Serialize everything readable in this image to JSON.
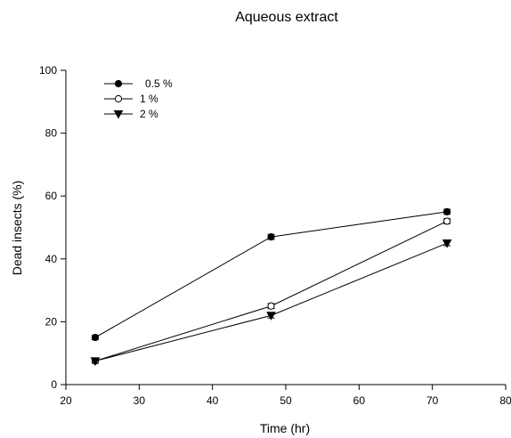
{
  "chart_data": {
    "type": "line",
    "title": "Aqueous extract",
    "xlabel": "Time (hr)",
    "ylabel": "Dead insects (%)",
    "xlim": [
      20,
      80
    ],
    "ylim": [
      0,
      100
    ],
    "xticks": [
      20,
      30,
      40,
      50,
      60,
      70,
      80
    ],
    "yticks": [
      0,
      20,
      40,
      60,
      80,
      100
    ],
    "grid": false,
    "legend_position": "top-left",
    "x": [
      24,
      48,
      72
    ],
    "series": [
      {
        "name": "0.5 %",
        "marker": "filled-circle",
        "values": [
          15,
          47,
          55
        ],
        "errors": [
          0.7,
          0.8,
          0.8
        ]
      },
      {
        "name": "1 %",
        "marker": "open-circle",
        "values": [
          7.5,
          25,
          52
        ],
        "errors": [
          0.7,
          0.8,
          0.8
        ]
      },
      {
        "name": "2 %",
        "marker": "filled-triangle-down",
        "values": [
          7.5,
          22,
          45
        ],
        "errors": [
          0.7,
          0.8,
          0.8
        ]
      }
    ]
  }
}
